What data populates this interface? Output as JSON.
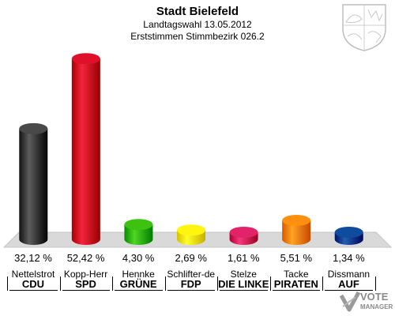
{
  "header": {
    "title": "Stadt Bielefeld",
    "subtitle": "Landtagswahl 13.05.2012",
    "district": "Erststimmen Stimmbezirk 026.2"
  },
  "logo": {
    "line1": "VOTE",
    "line2": "MANAGER"
  },
  "chart_data": {
    "type": "bar",
    "categories": [
      "CDU",
      "SPD",
      "GRÜNE",
      "FDP",
      "DIE LINKE",
      "PIRATEN",
      "AUF"
    ],
    "candidates": [
      "Nettelstrot",
      "Kopp-Herr",
      "Hennke",
      "Schlifter-de",
      "Stelze",
      "Tacke",
      "Dissmann"
    ],
    "values": [
      32.12,
      52.42,
      4.3,
      2.69,
      1.61,
      5.51,
      1.34
    ],
    "labels": [
      "32,12 %",
      "52,42 %",
      "4,30 %",
      "2,69 %",
      "1,61 %",
      "5,51 %",
      "1,34 %"
    ],
    "colors": [
      "#3a3a3a",
      "#d0021b",
      "#2db300",
      "#ffe600",
      "#d4145a",
      "#ff8000",
      "#003c8f"
    ],
    "ylim": [
      0,
      55
    ]
  }
}
